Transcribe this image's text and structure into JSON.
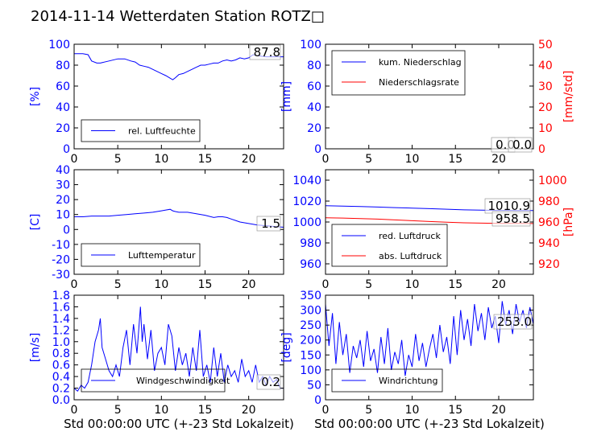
{
  "title": "2014-11-14 Wetterdaten Station ROTZ□",
  "colors": {
    "blue": "#0000ff",
    "red": "#ff0000",
    "black": "#000000",
    "axis": "#000000"
  },
  "chart_data": [
    {
      "id": "humidity",
      "type": "line",
      "xlabel": "",
      "ylabel": "[%]",
      "xlim": [
        0,
        24
      ],
      "ylim": [
        0,
        100
      ],
      "xticks": [
        0,
        5,
        10,
        15,
        20
      ],
      "yticks": [
        0,
        20,
        40,
        60,
        80,
        100
      ],
      "legend": {
        "entries": [
          "rel. Luftfeuchte"
        ],
        "placement": "lower-left"
      },
      "annotations": [
        "87.8"
      ],
      "series": [
        {
          "name": "rel. Luftfeuchte",
          "color": "#0000ff",
          "x": [
            0,
            1.0,
            1.6,
            2.0,
            2.6,
            3.0,
            4.0,
            5.0,
            5.8,
            6.5,
            7.0,
            7.5,
            8.0,
            8.5,
            9.0,
            9.5,
            10.0,
            10.5,
            10.9,
            11.3,
            11.6,
            12.0,
            12.5,
            13.0,
            13.5,
            14.0,
            14.5,
            15.0,
            15.5,
            16.0,
            16.5,
            17.0,
            17.5,
            18.0,
            18.5,
            19.0,
            19.5,
            20.0,
            20.5,
            21.0,
            22.0,
            23.0,
            24.0
          ],
          "y": [
            91,
            91,
            90,
            84,
            82,
            82,
            84,
            86,
            86,
            84,
            83,
            80,
            79,
            78,
            76,
            74,
            72,
            70,
            68,
            66,
            68,
            71,
            72,
            74,
            76,
            78,
            80,
            80,
            81,
            82,
            82,
            84,
            85,
            84,
            85,
            87,
            86,
            87,
            90,
            89,
            88,
            88,
            88
          ]
        }
      ]
    },
    {
      "id": "precipitation",
      "type": "line",
      "xlabel": "",
      "ylabel": "[mm]",
      "ylabel_right": "[mm/std]",
      "xlim": [
        0,
        24
      ],
      "ylim": [
        0,
        100
      ],
      "ylim_right": [
        0,
        50
      ],
      "xticks": [
        0,
        5,
        10,
        15,
        20
      ],
      "yticks": [
        0,
        20,
        40,
        60,
        80,
        100
      ],
      "yticks_right": [
        0,
        10,
        20,
        30,
        40,
        50
      ],
      "legend": {
        "entries": [
          "kum. Niederschlag",
          "Niederschlagsrate"
        ],
        "placement": "upper-left"
      },
      "annotations": [
        "0.0",
        "0.0"
      ],
      "series": [
        {
          "name": "kum. Niederschlag",
          "color": "#0000ff",
          "axis": "left",
          "x": [
            0,
            24
          ],
          "y": [
            0,
            0
          ]
        },
        {
          "name": "Niederschlagsrate",
          "color": "#ff0000",
          "axis": "right",
          "x": [
            0,
            24
          ],
          "y": [
            0,
            0
          ]
        }
      ]
    },
    {
      "id": "temperature",
      "type": "line",
      "xlabel": "",
      "ylabel": "[C]",
      "xlim": [
        0,
        24
      ],
      "ylim": [
        -30,
        40
      ],
      "xticks": [
        0,
        5,
        10,
        15,
        20
      ],
      "yticks": [
        -30,
        -20,
        -10,
        0,
        10,
        20,
        30,
        40
      ],
      "legend": {
        "entries": [
          "Lufttemperatur"
        ],
        "placement": "lower-left"
      },
      "annotations": [
        "1.5"
      ],
      "series": [
        {
          "name": "Lufttemperatur",
          "color": "#0000ff",
          "x": [
            0,
            1,
            2,
            3,
            4,
            5,
            6,
            7,
            8,
            9,
            10,
            10.5,
            11,
            11.3,
            11.6,
            12,
            13,
            14,
            15,
            16,
            16.5,
            17,
            17.5,
            18,
            18.5,
            19,
            20,
            21,
            22,
            23,
            24
          ],
          "y": [
            8.5,
            8.5,
            9,
            9,
            9,
            9.5,
            10,
            10.5,
            11,
            11.5,
            12.5,
            13,
            13.5,
            12.5,
            12,
            11.5,
            11.5,
            10.5,
            9.5,
            8,
            8.5,
            8.5,
            8,
            7,
            6,
            5,
            4,
            3,
            2.5,
            2,
            1.5
          ]
        }
      ]
    },
    {
      "id": "pressure",
      "type": "line",
      "xlabel": "",
      "ylabel": "",
      "ylabel_right": "[hPa]",
      "xlim": [
        0,
        24
      ],
      "ylim": [
        950,
        1050
      ],
      "ylim_right": [
        910,
        1010
      ],
      "xticks": [
        0,
        5,
        10,
        15,
        20
      ],
      "yticks": [
        960,
        980,
        1000,
        1020,
        1040
      ],
      "yticks_right": [
        920,
        940,
        960,
        980,
        1000
      ],
      "legend": {
        "entries": [
          "red. Luftdruck",
          "abs. Luftdruck"
        ],
        "placement": "lower-left"
      },
      "annotations": [
        "1010.9",
        "958.5"
      ],
      "series": [
        {
          "name": "red. Luftdruck",
          "color": "#0000ff",
          "axis": "left",
          "x": [
            0,
            2,
            4,
            6,
            8,
            10,
            12,
            14,
            16,
            18,
            20,
            22,
            24
          ],
          "y": [
            1015.5,
            1015.2,
            1014.8,
            1014.3,
            1013.8,
            1013.3,
            1012.8,
            1012.2,
            1011.6,
            1011.3,
            1011.1,
            1011.0,
            1010.9
          ]
        },
        {
          "name": "abs. Luftdruck",
          "color": "#ff0000",
          "axis": "right",
          "x": [
            0,
            2,
            4,
            6,
            8,
            10,
            12,
            14,
            16,
            18,
            20,
            22,
            24
          ],
          "y": [
            964.0,
            963.8,
            963.3,
            962.8,
            962.0,
            961.2,
            960.5,
            959.8,
            959.2,
            958.9,
            958.7,
            958.6,
            958.5
          ]
        }
      ]
    },
    {
      "id": "windspeed",
      "type": "line",
      "xlabel": "Std 00:00:00 UTC (+-23 Std Lokalzeit)",
      "ylabel": "[m/s]",
      "xlim": [
        0,
        24
      ],
      "ylim": [
        0,
        1.8
      ],
      "xticks": [
        0,
        5,
        10,
        15,
        20
      ],
      "yticks": [
        0.0,
        0.2,
        0.4,
        0.6,
        0.8,
        1.0,
        1.2,
        1.4,
        1.6,
        1.8
      ],
      "legend": {
        "entries": [
          "Windgeschwindigkeit"
        ],
        "placement": "lower-center"
      },
      "annotations": [
        "0.2"
      ],
      "series": [
        {
          "name": "Windgeschwindigkeit",
          "color": "#0000ff",
          "x": [
            0,
            0.4,
            0.8,
            1.2,
            1.6,
            2.0,
            2.4,
            2.8,
            3.0,
            3.2,
            3.6,
            4.0,
            4.4,
            4.8,
            5.2,
            5.6,
            6.0,
            6.4,
            6.8,
            7.2,
            7.6,
            7.8,
            8.0,
            8.4,
            8.8,
            9.2,
            9.6,
            10.0,
            10.4,
            10.8,
            11.2,
            11.6,
            12.0,
            12.4,
            12.8,
            13.2,
            13.6,
            14.0,
            14.4,
            14.8,
            15.2,
            15.6,
            16.0,
            16.4,
            16.8,
            17.2,
            17.6,
            18.0,
            18.4,
            18.8,
            19.2,
            19.6,
            20.0,
            20.4,
            20.8,
            21.2,
            21.6,
            22.0,
            22.4,
            22.8,
            23.2,
            23.6,
            24.0
          ],
          "y": [
            0.2,
            0.15,
            0.25,
            0.2,
            0.3,
            0.6,
            1.0,
            1.2,
            1.4,
            0.9,
            0.7,
            0.5,
            0.4,
            0.6,
            0.4,
            0.9,
            1.2,
            0.6,
            1.3,
            0.8,
            1.6,
            1.0,
            1.3,
            0.7,
            1.2,
            0.5,
            0.8,
            0.9,
            0.6,
            1.3,
            1.1,
            0.5,
            0.9,
            0.6,
            0.8,
            0.4,
            0.9,
            0.5,
            1.2,
            0.4,
            0.6,
            0.3,
            0.9,
            0.4,
            0.8,
            0.3,
            0.6,
            0.4,
            0.5,
            0.3,
            0.7,
            0.4,
            0.5,
            0.3,
            0.6,
            0.3,
            0.4,
            0.25,
            0.4,
            0.3,
            0.35,
            0.2,
            0.2
          ]
        }
      ]
    },
    {
      "id": "winddirection",
      "type": "line",
      "xlabel": "Std 00:00:00 UTC (+-23 Std Lokalzeit)",
      "ylabel": "[deg]",
      "xlim": [
        0,
        24
      ],
      "ylim": [
        0,
        350
      ],
      "xticks": [
        0,
        5,
        10,
        15,
        20
      ],
      "yticks": [
        0,
        50,
        100,
        150,
        200,
        250,
        300,
        350
      ],
      "legend": {
        "entries": [
          "Windrichtung"
        ],
        "placement": "lower-left"
      },
      "annotations": [
        "253.0"
      ],
      "series": [
        {
          "name": "Windrichtung",
          "color": "#0000ff",
          "x": [
            0,
            0.4,
            0.8,
            1.2,
            1.6,
            2.0,
            2.4,
            2.8,
            3.2,
            3.6,
            4.0,
            4.4,
            4.8,
            5.2,
            5.6,
            6.0,
            6.4,
            6.8,
            7.2,
            7.6,
            8.0,
            8.4,
            8.8,
            9.2,
            9.6,
            10.0,
            10.4,
            10.8,
            11.2,
            11.6,
            12.0,
            12.4,
            12.8,
            13.2,
            13.6,
            14.0,
            14.4,
            14.8,
            15.2,
            15.6,
            16.0,
            16.4,
            16.8,
            17.2,
            17.6,
            18.0,
            18.4,
            18.8,
            19.2,
            19.6,
            20.0,
            20.4,
            20.8,
            21.2,
            21.6,
            22.0,
            22.4,
            22.8,
            23.2,
            23.6,
            24.0
          ],
          "y": [
            320,
            180,
            290,
            120,
            260,
            150,
            220,
            90,
            180,
            140,
            200,
            110,
            230,
            130,
            170,
            90,
            210,
            120,
            240,
            100,
            160,
            120,
            200,
            80,
            150,
            110,
            220,
            130,
            190,
            110,
            170,
            220,
            140,
            250,
            160,
            210,
            120,
            280,
            150,
            300,
            200,
            270,
            180,
            320,
            230,
            290,
            200,
            310,
            240,
            280,
            190,
            330,
            250,
            300,
            220,
            320,
            260,
            300,
            240,
            310,
            253
          ]
        }
      ]
    }
  ]
}
